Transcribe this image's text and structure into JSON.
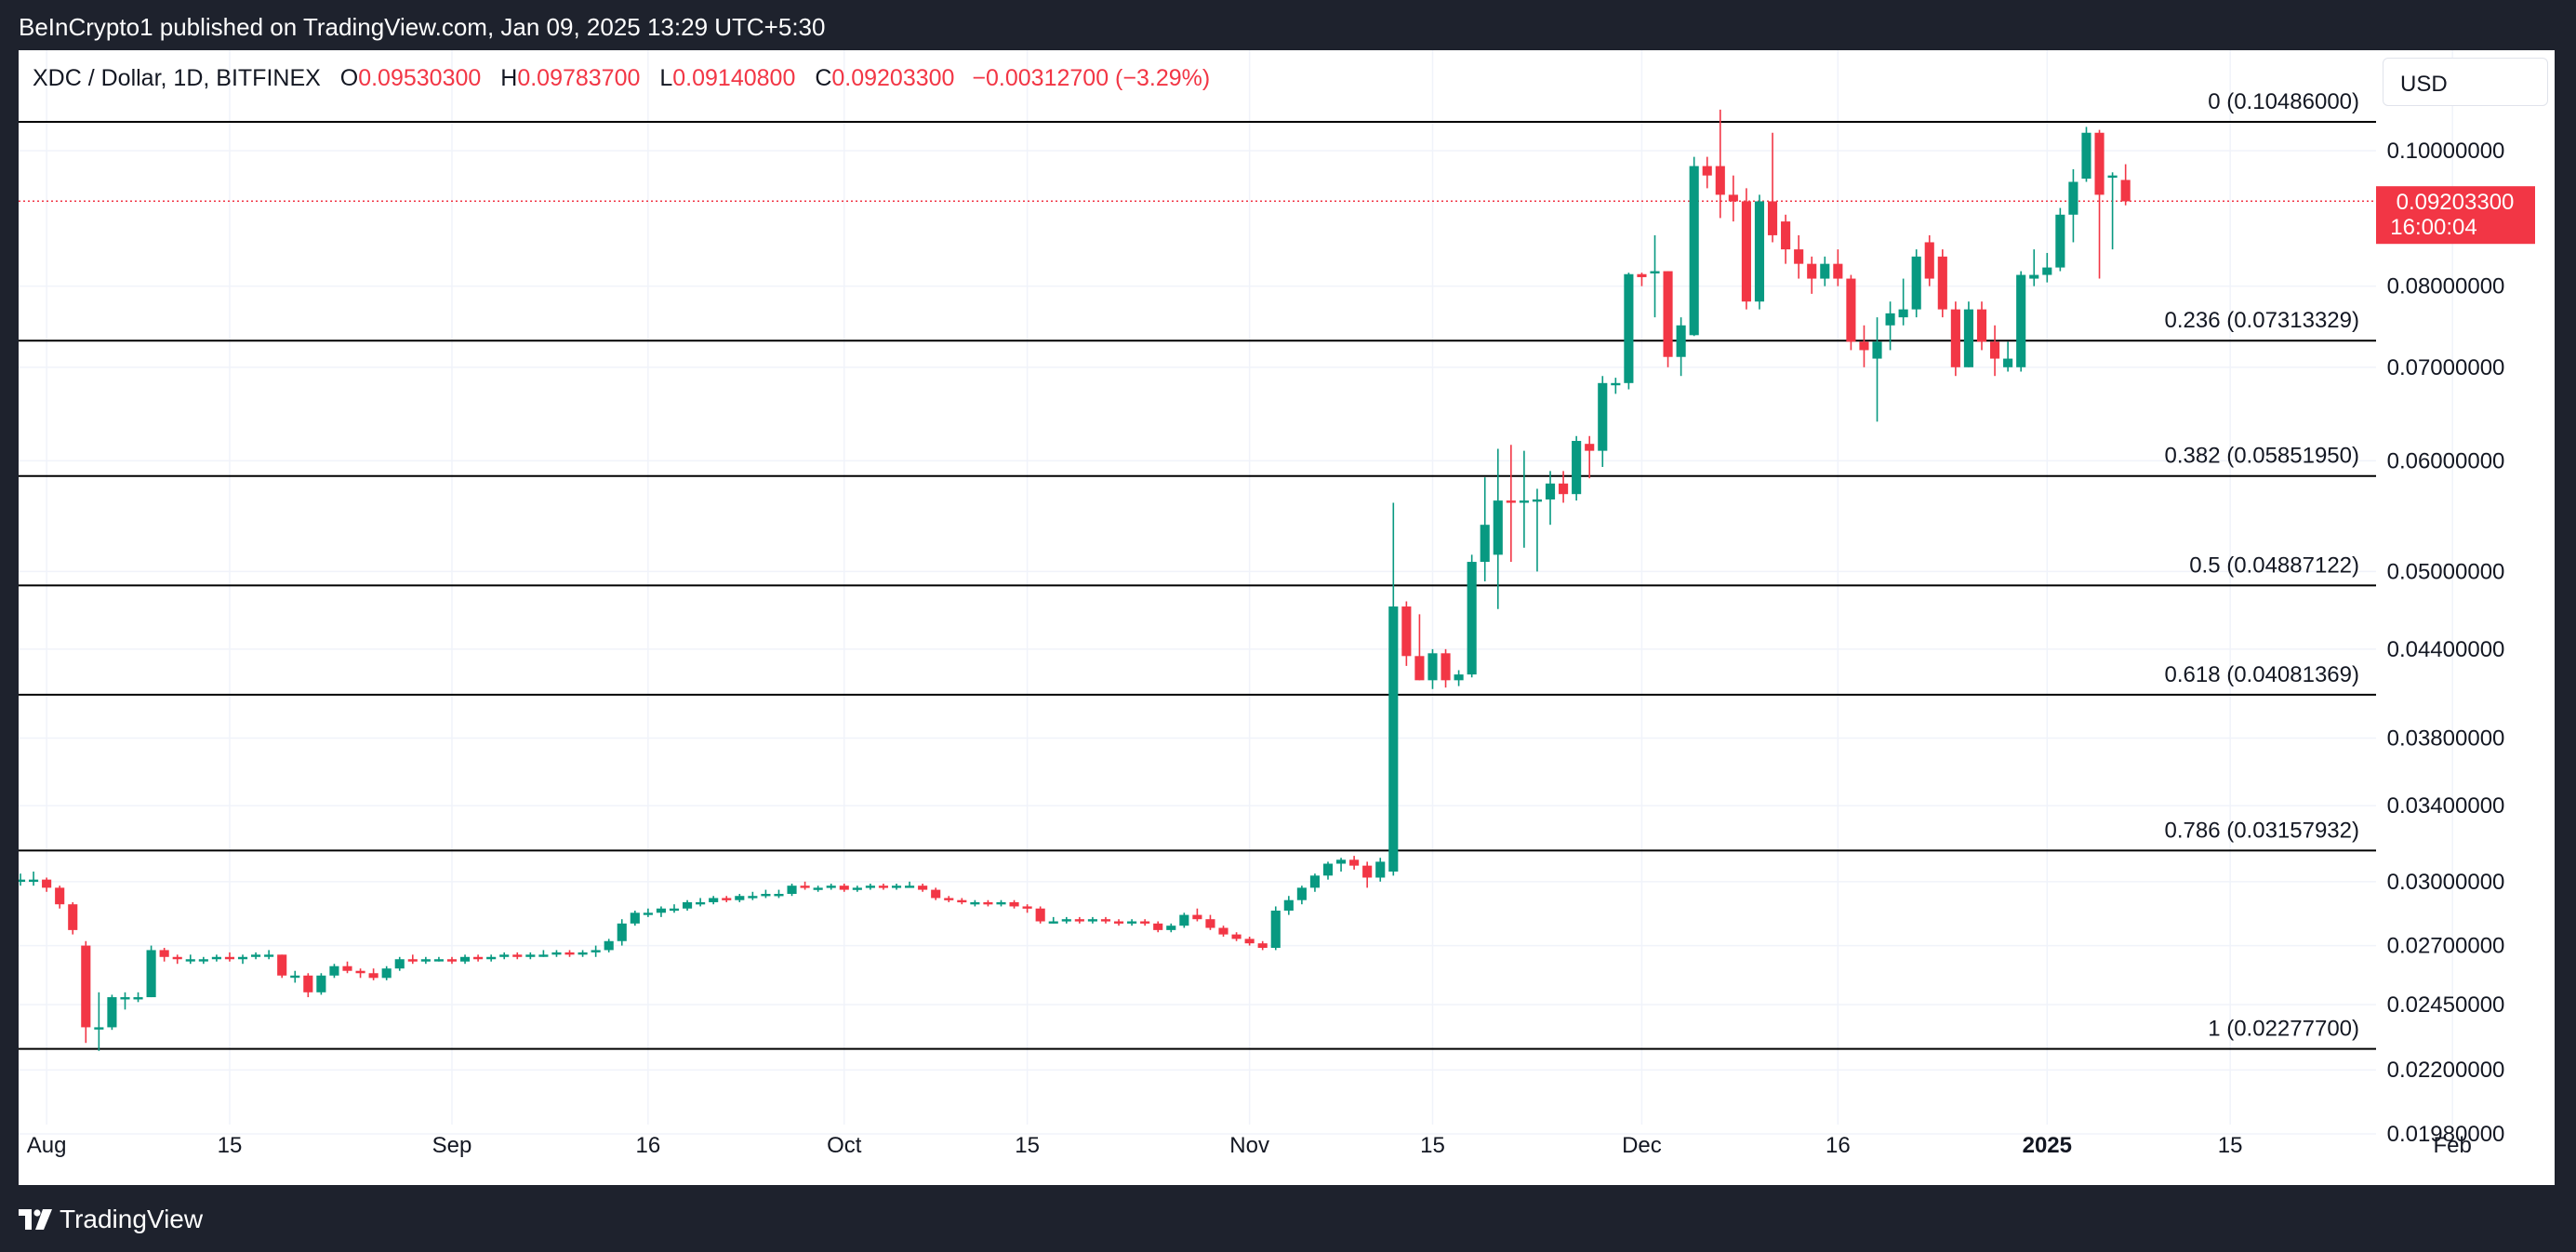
{
  "header": {
    "published_text": "BeInCrypto1 published on TradingView.com, Jan 09, 2025 13:29 UTC+5:30"
  },
  "legend": {
    "symbol": "XDC / Dollar, 1D, BITFINEX",
    "open_label": "O",
    "open": "0.09530300",
    "high_label": "H",
    "high": "0.09783700",
    "low_label": "L",
    "low": "0.09140800",
    "close_label": "C",
    "close": "0.09203300",
    "change": "−0.00312700 (−3.29%)"
  },
  "currency_button": "USD",
  "price_tag": {
    "price": "0.09203300",
    "countdown": "16:00:04"
  },
  "footer": {
    "brand": "TradingView"
  },
  "colors": {
    "up": "#089981",
    "down": "#f23645",
    "background": "#1e222d",
    "panel": "#ffffff",
    "fib_line": "#000000"
  },
  "chart_data": {
    "type": "candlestick",
    "title": "XDC / Dollar, 1D, BITFINEX",
    "y_scale": "log",
    "ylim": [
      0.0182,
      0.118
    ],
    "y_ticks": [
      "0.10000000",
      "0.08000000",
      "0.07000000",
      "0.06000000",
      "0.05000000",
      "0.04400000",
      "0.03800000",
      "0.03400000",
      "0.03000000",
      "0.02700000",
      "0.02450000",
      "0.02200000",
      "0.01980000"
    ],
    "x_ticks": [
      {
        "label": "Aug",
        "date": "2024-08-01"
      },
      {
        "label": "15",
        "date": "2024-08-15"
      },
      {
        "label": "Sep",
        "date": "2024-09-01"
      },
      {
        "label": "16",
        "date": "2024-09-16"
      },
      {
        "label": "Oct",
        "date": "2024-10-01"
      },
      {
        "label": "15",
        "date": "2024-10-15"
      },
      {
        "label": "Nov",
        "date": "2024-11-01"
      },
      {
        "label": "15",
        "date": "2024-11-15"
      },
      {
        "label": "Dec",
        "date": "2024-12-01"
      },
      {
        "label": "16",
        "date": "2024-12-16"
      },
      {
        "label": "2025",
        "date": "2025-01-01",
        "bold": true
      },
      {
        "label": "15",
        "date": "2025-01-15"
      },
      {
        "label": "Feb",
        "date": "2025-02-01"
      }
    ],
    "grid": true,
    "fib_levels": [
      {
        "label": "0 (0.10486000)",
        "value": 0.10486
      },
      {
        "label": "0.236 (0.07313329)",
        "value": 0.07313329
      },
      {
        "label": "0.382 (0.05851950)",
        "value": 0.0585195
      },
      {
        "label": "0.5 (0.04887122)",
        "value": 0.04887122
      },
      {
        "label": "0.618 (0.04081369)",
        "value": 0.04081369
      },
      {
        "label": "0.786 (0.03157932)",
        "value": 0.03157932
      },
      {
        "label": "1 (0.02277700)",
        "value": 0.022777
      }
    ],
    "current_price": 0.092033,
    "candles_columns": [
      "date",
      "open",
      "high",
      "low",
      "close"
    ],
    "candles": [
      [
        "2024-07-30",
        0.0301,
        0.0304,
        0.0298,
        0.0301
      ],
      [
        "2024-07-31",
        0.0301,
        0.0305,
        0.0298,
        0.0301
      ],
      [
        "2024-08-01",
        0.0301,
        0.0302,
        0.0295,
        0.0297
      ],
      [
        "2024-08-02",
        0.0297,
        0.0298,
        0.0287,
        0.0289
      ],
      [
        "2024-08-03",
        0.0289,
        0.029,
        0.0275,
        0.0277
      ],
      [
        "2024-08-04",
        0.027,
        0.0272,
        0.023,
        0.0236
      ],
      [
        "2024-08-05",
        0.0236,
        0.025,
        0.0227,
        0.0236
      ],
      [
        "2024-08-06",
        0.0236,
        0.0249,
        0.0235,
        0.0248
      ],
      [
        "2024-08-07",
        0.0248,
        0.025,
        0.0243,
        0.0248
      ],
      [
        "2024-08-08",
        0.0248,
        0.025,
        0.0246,
        0.0248
      ],
      [
        "2024-08-09",
        0.0248,
        0.027,
        0.0248,
        0.0268
      ],
      [
        "2024-08-10",
        0.0268,
        0.0269,
        0.0263,
        0.0265
      ],
      [
        "2024-08-11",
        0.0265,
        0.0266,
        0.0262,
        0.0264
      ],
      [
        "2024-08-12",
        0.0264,
        0.0266,
        0.0262,
        0.0264
      ],
      [
        "2024-08-13",
        0.0264,
        0.0265,
        0.0262,
        0.0264
      ],
      [
        "2024-08-14",
        0.0264,
        0.0266,
        0.0263,
        0.0265
      ],
      [
        "2024-08-15",
        0.0265,
        0.0267,
        0.0263,
        0.0264
      ],
      [
        "2024-08-16",
        0.0264,
        0.0266,
        0.0262,
        0.0265
      ],
      [
        "2024-08-17",
        0.0265,
        0.0267,
        0.0264,
        0.0266
      ],
      [
        "2024-08-18",
        0.0266,
        0.0268,
        0.0264,
        0.0266
      ],
      [
        "2024-08-19",
        0.0266,
        0.0266,
        0.0256,
        0.0257
      ],
      [
        "2024-08-20",
        0.0257,
        0.0259,
        0.0254,
        0.0257
      ],
      [
        "2024-08-21",
        0.0257,
        0.0258,
        0.0248,
        0.025
      ],
      [
        "2024-08-22",
        0.025,
        0.0258,
        0.0249,
        0.0257
      ],
      [
        "2024-08-23",
        0.0257,
        0.0262,
        0.0256,
        0.0261
      ],
      [
        "2024-08-24",
        0.0261,
        0.0263,
        0.0258,
        0.0259
      ],
      [
        "2024-08-25",
        0.0259,
        0.026,
        0.0256,
        0.0258
      ],
      [
        "2024-08-26",
        0.0258,
        0.026,
        0.0255,
        0.0256
      ],
      [
        "2024-08-27",
        0.0256,
        0.0261,
        0.0255,
        0.026
      ],
      [
        "2024-08-28",
        0.026,
        0.0265,
        0.0259,
        0.0264
      ],
      [
        "2024-08-29",
        0.0264,
        0.0266,
        0.0262,
        0.0263
      ],
      [
        "2024-08-30",
        0.0263,
        0.0265,
        0.0262,
        0.0264
      ],
      [
        "2024-08-31",
        0.0264,
        0.0265,
        0.0263,
        0.0264
      ],
      [
        "2024-09-01",
        0.0264,
        0.0265,
        0.0262,
        0.0263
      ],
      [
        "2024-09-02",
        0.0263,
        0.0266,
        0.0262,
        0.0265
      ],
      [
        "2024-09-03",
        0.0265,
        0.0266,
        0.0263,
        0.0264
      ],
      [
        "2024-09-04",
        0.0264,
        0.0266,
        0.0263,
        0.0265
      ],
      [
        "2024-09-05",
        0.0265,
        0.0267,
        0.0264,
        0.0266
      ],
      [
        "2024-09-06",
        0.0266,
        0.0267,
        0.0264,
        0.0265
      ],
      [
        "2024-09-07",
        0.0265,
        0.0267,
        0.0264,
        0.0266
      ],
      [
        "2024-09-08",
        0.0266,
        0.0268,
        0.0265,
        0.0266
      ],
      [
        "2024-09-09",
        0.0266,
        0.0268,
        0.0265,
        0.0267
      ],
      [
        "2024-09-10",
        0.0267,
        0.0268,
        0.0265,
        0.0266
      ],
      [
        "2024-09-11",
        0.0266,
        0.0268,
        0.0265,
        0.0267
      ],
      [
        "2024-09-12",
        0.0267,
        0.027,
        0.0265,
        0.0268
      ],
      [
        "2024-09-13",
        0.0268,
        0.0273,
        0.0267,
        0.0272
      ],
      [
        "2024-09-14",
        0.0272,
        0.0282,
        0.027,
        0.028
      ],
      [
        "2024-09-15",
        0.028,
        0.0286,
        0.0279,
        0.0285
      ],
      [
        "2024-09-16",
        0.0285,
        0.0287,
        0.0283,
        0.0285
      ],
      [
        "2024-09-17",
        0.0285,
        0.0288,
        0.0283,
        0.0287
      ],
      [
        "2024-09-18",
        0.0287,
        0.0289,
        0.0285,
        0.0287
      ],
      [
        "2024-09-19",
        0.0287,
        0.0291,
        0.0286,
        0.029
      ],
      [
        "2024-09-20",
        0.029,
        0.0292,
        0.0288,
        0.029
      ],
      [
        "2024-09-21",
        0.029,
        0.0293,
        0.0289,
        0.0292
      ],
      [
        "2024-09-22",
        0.0292,
        0.0293,
        0.029,
        0.0291
      ],
      [
        "2024-09-23",
        0.0291,
        0.0294,
        0.029,
        0.0293
      ],
      [
        "2024-09-24",
        0.0293,
        0.0295,
        0.0291,
        0.0293
      ],
      [
        "2024-09-25",
        0.0293,
        0.0296,
        0.0292,
        0.0294
      ],
      [
        "2024-09-26",
        0.0294,
        0.0296,
        0.0292,
        0.0294
      ],
      [
        "2024-09-27",
        0.0294,
        0.0299,
        0.0293,
        0.0298
      ],
      [
        "2024-09-28",
        0.0298,
        0.03,
        0.0296,
        0.0297
      ],
      [
        "2024-09-29",
        0.0297,
        0.0298,
        0.0295,
        0.0297
      ],
      [
        "2024-09-30",
        0.0297,
        0.0299,
        0.0296,
        0.0298
      ],
      [
        "2024-10-01",
        0.0298,
        0.0299,
        0.0295,
        0.0296
      ],
      [
        "2024-10-02",
        0.0296,
        0.0298,
        0.0295,
        0.0297
      ],
      [
        "2024-10-03",
        0.0297,
        0.0299,
        0.0296,
        0.0298
      ],
      [
        "2024-10-04",
        0.0298,
        0.0299,
        0.0296,
        0.0297
      ],
      [
        "2024-10-05",
        0.0297,
        0.0299,
        0.0296,
        0.0298
      ],
      [
        "2024-10-06",
        0.0298,
        0.03,
        0.0297,
        0.0298
      ],
      [
        "2024-10-07",
        0.0298,
        0.0299,
        0.0295,
        0.0296
      ],
      [
        "2024-10-08",
        0.0296,
        0.0297,
        0.0291,
        0.0292
      ],
      [
        "2024-10-09",
        0.0292,
        0.0293,
        0.029,
        0.0291
      ],
      [
        "2024-10-10",
        0.0291,
        0.0292,
        0.0289,
        0.029
      ],
      [
        "2024-10-11",
        0.029,
        0.0291,
        0.0288,
        0.029
      ],
      [
        "2024-10-12",
        0.029,
        0.0291,
        0.0288,
        0.0289
      ],
      [
        "2024-10-13",
        0.0289,
        0.0291,
        0.0288,
        0.029
      ],
      [
        "2024-10-14",
        0.029,
        0.0291,
        0.0287,
        0.0288
      ],
      [
        "2024-10-15",
        0.0288,
        0.0289,
        0.0285,
        0.0287
      ],
      [
        "2024-10-16",
        0.0287,
        0.0288,
        0.028,
        0.0281
      ],
      [
        "2024-10-17",
        0.0281,
        0.0283,
        0.028,
        0.0281
      ],
      [
        "2024-10-18",
        0.0281,
        0.0283,
        0.028,
        0.0282
      ],
      [
        "2024-10-19",
        0.0282,
        0.0283,
        0.028,
        0.0281
      ],
      [
        "2024-10-20",
        0.0281,
        0.0283,
        0.028,
        0.0282
      ],
      [
        "2024-10-21",
        0.0282,
        0.0283,
        0.028,
        0.0281
      ],
      [
        "2024-10-22",
        0.0281,
        0.0282,
        0.0279,
        0.028
      ],
      [
        "2024-10-23",
        0.028,
        0.0282,
        0.0279,
        0.0281
      ],
      [
        "2024-10-24",
        0.0281,
        0.0282,
        0.0279,
        0.028
      ],
      [
        "2024-10-25",
        0.028,
        0.0281,
        0.0276,
        0.0277
      ],
      [
        "2024-10-26",
        0.0277,
        0.028,
        0.0276,
        0.0279
      ],
      [
        "2024-10-27",
        0.0279,
        0.0285,
        0.0278,
        0.0284
      ],
      [
        "2024-10-28",
        0.0284,
        0.0287,
        0.0281,
        0.0282
      ],
      [
        "2024-10-29",
        0.0282,
        0.0284,
        0.0277,
        0.0278
      ],
      [
        "2024-10-30",
        0.0278,
        0.0279,
        0.0274,
        0.0275
      ],
      [
        "2024-10-31",
        0.0275,
        0.0276,
        0.0272,
        0.0273
      ],
      [
        "2024-11-01",
        0.0273,
        0.0274,
        0.027,
        0.0271
      ],
      [
        "2024-11-02",
        0.0271,
        0.0272,
        0.0268,
        0.0269
      ],
      [
        "2024-11-03",
        0.0269,
        0.0288,
        0.0268,
        0.0286
      ],
      [
        "2024-11-04",
        0.0286,
        0.0293,
        0.0284,
        0.0291
      ],
      [
        "2024-11-05",
        0.0291,
        0.0298,
        0.0289,
        0.0297
      ],
      [
        "2024-11-06",
        0.0297,
        0.0304,
        0.0295,
        0.0303
      ],
      [
        "2024-11-07",
        0.0303,
        0.031,
        0.0301,
        0.0309
      ],
      [
        "2024-11-08",
        0.0309,
        0.0312,
        0.0305,
        0.0311
      ],
      [
        "2024-11-09",
        0.0311,
        0.0313,
        0.0306,
        0.0308
      ],
      [
        "2024-11-10",
        0.0308,
        0.031,
        0.0297,
        0.0302
      ],
      [
        "2024-11-11",
        0.0302,
        0.0312,
        0.03,
        0.031
      ],
      [
        "2024-11-12",
        0.0305,
        0.056,
        0.0303,
        0.0472
      ],
      [
        "2024-11-13",
        0.0472,
        0.0476,
        0.0428,
        0.0435
      ],
      [
        "2024-11-14",
        0.0435,
        0.0466,
        0.0418,
        0.0418
      ],
      [
        "2024-11-15",
        0.0418,
        0.044,
        0.0412,
        0.0437
      ],
      [
        "2024-11-16",
        0.0437,
        0.044,
        0.0413,
        0.0418
      ],
      [
        "2024-11-17",
        0.0418,
        0.0425,
        0.0414,
        0.0422
      ],
      [
        "2024-11-18",
        0.0422,
        0.0514,
        0.042,
        0.0508
      ],
      [
        "2024-11-19",
        0.0508,
        0.0584,
        0.0492,
        0.054
      ],
      [
        "2024-11-20",
        0.0514,
        0.0612,
        0.047,
        0.0562
      ],
      [
        "2024-11-21",
        0.0562,
        0.0616,
        0.0508,
        0.056
      ],
      [
        "2024-11-22",
        0.056,
        0.061,
        0.052,
        0.0562
      ],
      [
        "2024-11-23",
        0.0562,
        0.0573,
        0.05,
        0.0563
      ],
      [
        "2024-11-24",
        0.0563,
        0.059,
        0.054,
        0.0578
      ],
      [
        "2024-11-25",
        0.0578,
        0.059,
        0.056,
        0.0568
      ],
      [
        "2024-11-26",
        0.0568,
        0.0625,
        0.0562,
        0.062
      ],
      [
        "2024-11-27",
        0.0617,
        0.0625,
        0.0583,
        0.061
      ],
      [
        "2024-11-28",
        0.061,
        0.069,
        0.0594,
        0.0682
      ],
      [
        "2024-11-29",
        0.0682,
        0.0688,
        0.067,
        0.0682
      ],
      [
        "2024-11-30",
        0.0682,
        0.0818,
        0.0675,
        0.0816
      ],
      [
        "2024-12-01",
        0.0816,
        0.0818,
        0.08,
        0.0812
      ],
      [
        "2024-12-02",
        0.082,
        0.087,
        0.076,
        0.082
      ],
      [
        "2024-12-03",
        0.082,
        0.082,
        0.07,
        0.0712
      ],
      [
        "2024-12-04",
        0.0712,
        0.076,
        0.069,
        0.075
      ],
      [
        "2024-12-05",
        0.0738,
        0.099,
        0.0737,
        0.0975
      ],
      [
        "2024-12-06",
        0.0975,
        0.099,
        0.094,
        0.096
      ],
      [
        "2024-12-07",
        0.0975,
        0.107,
        0.0895,
        0.093
      ],
      [
        "2024-12-08",
        0.093,
        0.096,
        0.089,
        0.092
      ],
      [
        "2024-12-09",
        0.092,
        0.094,
        0.077,
        0.078
      ],
      [
        "2024-12-10",
        0.078,
        0.093,
        0.077,
        0.092
      ],
      [
        "2024-12-11",
        0.092,
        0.103,
        0.086,
        0.087
      ],
      [
        "2024-12-12",
        0.089,
        0.09,
        0.083,
        0.085
      ],
      [
        "2024-12-13",
        0.085,
        0.087,
        0.081,
        0.083
      ],
      [
        "2024-12-14",
        0.083,
        0.084,
        0.079,
        0.081
      ],
      [
        "2024-12-15",
        0.081,
        0.084,
        0.08,
        0.083
      ],
      [
        "2024-12-16",
        0.083,
        0.085,
        0.08,
        0.081
      ],
      [
        "2024-12-17",
        0.081,
        0.0815,
        0.072,
        0.073
      ],
      [
        "2024-12-18",
        0.073,
        0.075,
        0.07,
        0.072
      ],
      [
        "2024-12-19",
        0.071,
        0.076,
        0.064,
        0.073
      ],
      [
        "2024-12-20",
        0.075,
        0.078,
        0.072,
        0.0765
      ],
      [
        "2024-12-21",
        0.076,
        0.081,
        0.075,
        0.077
      ],
      [
        "2024-12-22",
        0.077,
        0.085,
        0.076,
        0.084
      ],
      [
        "2024-12-23",
        0.086,
        0.087,
        0.08,
        0.081
      ],
      [
        "2024-12-24",
        0.084,
        0.085,
        0.076,
        0.077
      ],
      [
        "2024-12-25",
        0.077,
        0.078,
        0.069,
        0.07
      ],
      [
        "2024-12-26",
        0.07,
        0.078,
        0.07,
        0.077
      ],
      [
        "2024-12-27",
        0.077,
        0.078,
        0.072,
        0.073
      ],
      [
        "2024-12-28",
        0.073,
        0.075,
        0.069,
        0.071
      ],
      [
        "2024-12-29",
        0.07,
        0.073,
        0.0695,
        0.071
      ],
      [
        "2024-12-30",
        0.07,
        0.082,
        0.0695,
        0.0815
      ],
      [
        "2024-12-31",
        0.081,
        0.085,
        0.08,
        0.0815
      ],
      [
        "2025-01-01",
        0.0815,
        0.0845,
        0.0805,
        0.0825
      ],
      [
        "2025-01-02",
        0.0825,
        0.091,
        0.082,
        0.09
      ],
      [
        "2025-01-03",
        0.09,
        0.097,
        0.086,
        0.095
      ],
      [
        "2025-01-04",
        0.0955,
        0.104,
        0.095,
        0.103
      ],
      [
        "2025-01-05",
        0.103,
        0.1035,
        0.081,
        0.093
      ],
      [
        "2025-01-06",
        0.096,
        0.0965,
        0.085,
        0.096
      ],
      [
        "2025-01-07",
        0.0953,
        0.0978,
        0.0914,
        0.092
      ]
    ]
  }
}
